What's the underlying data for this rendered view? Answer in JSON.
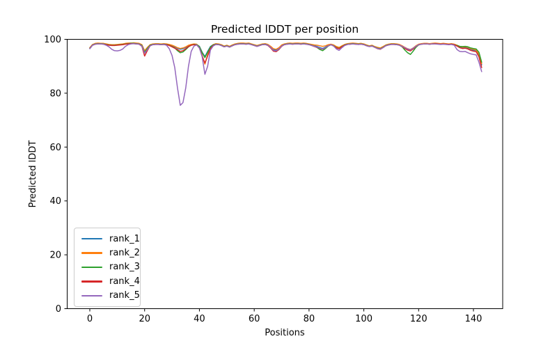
{
  "figure": {
    "title": "Predicted lDDT per position",
    "xlabel": "Positions",
    "ylabel": "Predicted lDDT"
  },
  "chart_data": {
    "type": "line",
    "title": "Predicted lDDT per position",
    "xlabel": "Positions",
    "ylabel": "Predicted lDDT",
    "xlim": [
      -7,
      150
    ],
    "ylim": [
      0,
      100
    ],
    "x_ticks": [
      0,
      20,
      40,
      60,
      80,
      100,
      120,
      140
    ],
    "y_ticks": [
      0,
      20,
      40,
      60,
      80,
      100
    ],
    "grid": false,
    "legend_position": "lower left",
    "x_start": 0,
    "x_step": 1,
    "n_points": 144,
    "series": [
      {
        "name": "rank_1",
        "color": "#1f77b4",
        "values": [
          96.8,
          98.0,
          98.4,
          98.5,
          98.5,
          98.4,
          98.2,
          98.0,
          97.9,
          97.9,
          98.0,
          98.1,
          98.2,
          98.4,
          98.5,
          98.6,
          98.6,
          98.5,
          98.4,
          97.9,
          95.4,
          96.8,
          97.9,
          98.2,
          98.3,
          98.3,
          98.2,
          98.3,
          98.2,
          98.0,
          97.6,
          97.2,
          96.7,
          96.3,
          96.5,
          97.0,
          97.6,
          98.0,
          98.2,
          98.1,
          97.4,
          95.2,
          93.6,
          95.5,
          97.3,
          98.0,
          98.3,
          98.2,
          97.9,
          97.4,
          97.7,
          97.3,
          97.8,
          98.2,
          98.4,
          98.5,
          98.5,
          98.4,
          98.5,
          98.2,
          97.9,
          97.6,
          97.9,
          98.2,
          98.3,
          98.0,
          97.2,
          96.2,
          96.0,
          96.6,
          97.7,
          98.2,
          98.4,
          98.5,
          98.4,
          98.5,
          98.5,
          98.4,
          98.5,
          98.4,
          98.2,
          97.9,
          97.6,
          97.3,
          96.9,
          96.6,
          97.1,
          97.8,
          98.1,
          97.7,
          97.0,
          96.7,
          97.4,
          98.0,
          98.3,
          98.4,
          98.5,
          98.4,
          98.3,
          98.4,
          98.2,
          97.8,
          97.5,
          97.7,
          97.2,
          96.8,
          96.6,
          97.1,
          97.8,
          98.1,
          98.3,
          98.3,
          98.2,
          98.0,
          97.5,
          96.8,
          96.2,
          95.9,
          96.6,
          97.5,
          98.1,
          98.3,
          98.4,
          98.4,
          98.3,
          98.4,
          98.5,
          98.4,
          98.3,
          98.4,
          98.3,
          98.2,
          98.3,
          98.1,
          97.7,
          97.2,
          96.9,
          97.0,
          96.8,
          96.3,
          96.0,
          95.8,
          94.0,
          90.5
        ]
      },
      {
        "name": "rank_2",
        "color": "#ff7f0e",
        "values": [
          96.9,
          98.1,
          98.5,
          98.6,
          98.5,
          98.5,
          98.3,
          98.1,
          98.0,
          98.0,
          98.1,
          98.2,
          98.3,
          98.5,
          98.6,
          98.6,
          98.7,
          98.6,
          98.5,
          98.0,
          95.8,
          97.0,
          98.0,
          98.3,
          98.4,
          98.4,
          98.3,
          98.4,
          98.3,
          98.1,
          97.8,
          97.4,
          96.9,
          96.6,
          96.8,
          97.2,
          97.8,
          98.1,
          98.3,
          98.2,
          97.2,
          94.0,
          90.8,
          94.2,
          97.0,
          98.0,
          98.4,
          98.3,
          98.0,
          97.5,
          97.8,
          97.4,
          97.9,
          98.3,
          98.5,
          98.6,
          98.6,
          98.5,
          98.6,
          98.3,
          98.0,
          97.7,
          98.0,
          98.3,
          98.4,
          98.1,
          97.4,
          96.5,
          96.3,
          96.9,
          97.9,
          98.3,
          98.5,
          98.6,
          98.5,
          98.6,
          98.6,
          98.5,
          98.6,
          98.5,
          98.3,
          98.1,
          97.9,
          97.8,
          97.6,
          97.4,
          97.6,
          98.0,
          98.2,
          97.9,
          97.3,
          97.0,
          97.6,
          98.1,
          98.4,
          98.5,
          98.6,
          98.5,
          98.4,
          98.5,
          98.3,
          97.9,
          97.6,
          97.8,
          97.3,
          97.0,
          96.8,
          97.3,
          97.9,
          98.2,
          98.4,
          98.4,
          98.3,
          98.1,
          97.6,
          97.0,
          96.5,
          96.2,
          96.8,
          97.6,
          98.2,
          98.4,
          98.5,
          98.5,
          98.4,
          98.5,
          98.6,
          98.5,
          98.4,
          98.5,
          98.4,
          98.3,
          98.4,
          98.2,
          97.8,
          97.4,
          97.1,
          97.2,
          97.0,
          96.5,
          96.3,
          96.0,
          94.5,
          91.0
        ]
      },
      {
        "name": "rank_3",
        "color": "#2ca02c",
        "values": [
          96.7,
          97.9,
          98.3,
          98.4,
          98.4,
          98.3,
          98.1,
          97.9,
          97.8,
          97.8,
          97.9,
          98.0,
          98.1,
          98.3,
          98.4,
          98.5,
          98.5,
          98.4,
          98.3,
          97.7,
          95.2,
          96.6,
          97.8,
          98.1,
          98.2,
          98.2,
          98.1,
          98.2,
          98.1,
          97.8,
          97.3,
          96.8,
          95.8,
          95.0,
          95.3,
          96.2,
          97.2,
          97.8,
          98.1,
          98.0,
          97.3,
          95.0,
          93.2,
          95.2,
          97.1,
          97.9,
          98.2,
          98.1,
          97.8,
          97.3,
          97.6,
          97.2,
          97.7,
          98.1,
          98.3,
          98.4,
          98.4,
          98.3,
          98.4,
          98.1,
          97.8,
          97.5,
          97.8,
          98.1,
          98.2,
          97.8,
          96.8,
          95.7,
          95.5,
          96.2,
          97.5,
          98.1,
          98.3,
          98.4,
          98.3,
          98.4,
          98.4,
          98.3,
          98.4,
          98.3,
          98.1,
          97.8,
          97.4,
          96.9,
          96.2,
          95.8,
          96.6,
          97.5,
          98.0,
          97.6,
          96.9,
          96.6,
          97.3,
          97.9,
          98.2,
          98.3,
          98.4,
          98.3,
          98.2,
          98.3,
          98.1,
          97.7,
          97.4,
          97.6,
          97.1,
          96.7,
          96.5,
          97.0,
          97.7,
          98.0,
          98.2,
          98.2,
          98.1,
          97.8,
          97.2,
          96.0,
          95.0,
          94.4,
          95.6,
          97.0,
          97.9,
          98.2,
          98.3,
          98.3,
          98.2,
          98.3,
          98.4,
          98.3,
          98.2,
          98.3,
          98.2,
          98.1,
          98.2,
          98.0,
          97.7,
          97.4,
          97.3,
          97.4,
          97.2,
          96.8,
          96.6,
          96.4,
          95.2,
          91.5
        ]
      },
      {
        "name": "rank_4",
        "color": "#d62728",
        "values": [
          96.6,
          97.8,
          98.2,
          98.3,
          98.3,
          98.2,
          98.0,
          97.8,
          97.7,
          97.7,
          97.8,
          97.9,
          98.0,
          98.2,
          98.3,
          98.4,
          98.4,
          98.3,
          98.2,
          97.4,
          93.8,
          95.8,
          97.6,
          98.0,
          98.1,
          98.1,
          98.0,
          98.1,
          98.0,
          97.7,
          97.2,
          96.7,
          96.2,
          95.5,
          95.8,
          96.5,
          97.3,
          97.8,
          98.0,
          97.9,
          96.8,
          93.8,
          91.2,
          93.8,
          96.6,
          97.7,
          98.1,
          98.0,
          97.7,
          97.2,
          97.5,
          97.1,
          97.6,
          98.0,
          98.2,
          98.3,
          98.3,
          98.2,
          98.3,
          98.0,
          97.7,
          97.4,
          97.7,
          98.0,
          98.1,
          97.7,
          96.8,
          95.6,
          95.4,
          96.2,
          97.4,
          98.0,
          98.2,
          98.3,
          98.2,
          98.3,
          98.3,
          98.2,
          98.3,
          98.2,
          98.0,
          97.7,
          97.3,
          97.0,
          96.6,
          96.3,
          96.9,
          97.6,
          98.0,
          97.5,
          96.8,
          96.5,
          97.2,
          97.8,
          98.1,
          98.2,
          98.3,
          98.2,
          98.1,
          98.2,
          98.0,
          97.6,
          97.3,
          97.5,
          97.0,
          96.5,
          96.3,
          96.9,
          97.6,
          97.9,
          98.1,
          98.1,
          98.0,
          97.8,
          97.3,
          96.6,
          96.0,
          95.7,
          96.4,
          97.3,
          98.0,
          98.2,
          98.3,
          98.3,
          98.2,
          98.3,
          98.4,
          98.3,
          98.2,
          98.3,
          98.2,
          98.1,
          98.2,
          98.0,
          97.5,
          96.9,
          96.6,
          96.7,
          96.4,
          95.9,
          95.6,
          95.4,
          93.5,
          89.5
        ]
      },
      {
        "name": "rank_5",
        "color": "#9467bd",
        "values": [
          96.5,
          97.8,
          98.2,
          98.3,
          98.3,
          98.2,
          97.8,
          97.2,
          96.3,
          95.8,
          95.7,
          95.9,
          96.4,
          97.4,
          98.0,
          98.3,
          98.4,
          98.3,
          98.2,
          97.5,
          94.8,
          96.2,
          97.6,
          98.0,
          98.1,
          98.1,
          98.0,
          98.1,
          97.8,
          96.5,
          94.0,
          89.5,
          82.0,
          75.5,
          76.5,
          82.0,
          90.0,
          95.5,
          97.5,
          97.9,
          96.8,
          93.5,
          87.0,
          90.0,
          96.0,
          97.5,
          98.1,
          98.0,
          97.7,
          97.2,
          97.5,
          97.1,
          97.6,
          98.0,
          98.2,
          98.3,
          98.3,
          98.2,
          98.3,
          98.0,
          97.7,
          97.4,
          97.7,
          98.0,
          98.1,
          97.8,
          97.0,
          95.9,
          95.7,
          96.4,
          97.5,
          98.0,
          98.2,
          98.3,
          98.2,
          98.3,
          98.3,
          98.2,
          98.3,
          98.2,
          98.0,
          97.7,
          97.4,
          97.1,
          96.7,
          96.4,
          96.9,
          97.6,
          98.0,
          97.5,
          96.4,
          95.9,
          96.9,
          97.7,
          98.1,
          98.2,
          98.3,
          98.2,
          98.1,
          98.2,
          98.0,
          97.6,
          97.3,
          97.5,
          97.0,
          96.6,
          96.4,
          96.9,
          97.6,
          97.9,
          98.1,
          98.1,
          98.0,
          97.8,
          97.4,
          96.9,
          96.4,
          96.1,
          96.7,
          97.4,
          98.0,
          98.2,
          98.3,
          98.3,
          98.2,
          98.3,
          98.3,
          98.2,
          98.1,
          98.2,
          98.1,
          98.0,
          98.1,
          97.8,
          96.2,
          95.5,
          95.4,
          95.5,
          95.0,
          94.6,
          94.4,
          94.2,
          91.5,
          88.0
        ]
      }
    ]
  },
  "legend": {
    "items": [
      {
        "label": "rank_1",
        "color": "#1f77b4"
      },
      {
        "label": "rank_2",
        "color": "#ff7f0e"
      },
      {
        "label": "rank_3",
        "color": "#2ca02c"
      },
      {
        "label": "rank_4",
        "color": "#d62728"
      },
      {
        "label": "rank_5",
        "color": "#9467bd"
      }
    ]
  },
  "style": {
    "axis_color": "#000000",
    "background": "#ffffff"
  }
}
